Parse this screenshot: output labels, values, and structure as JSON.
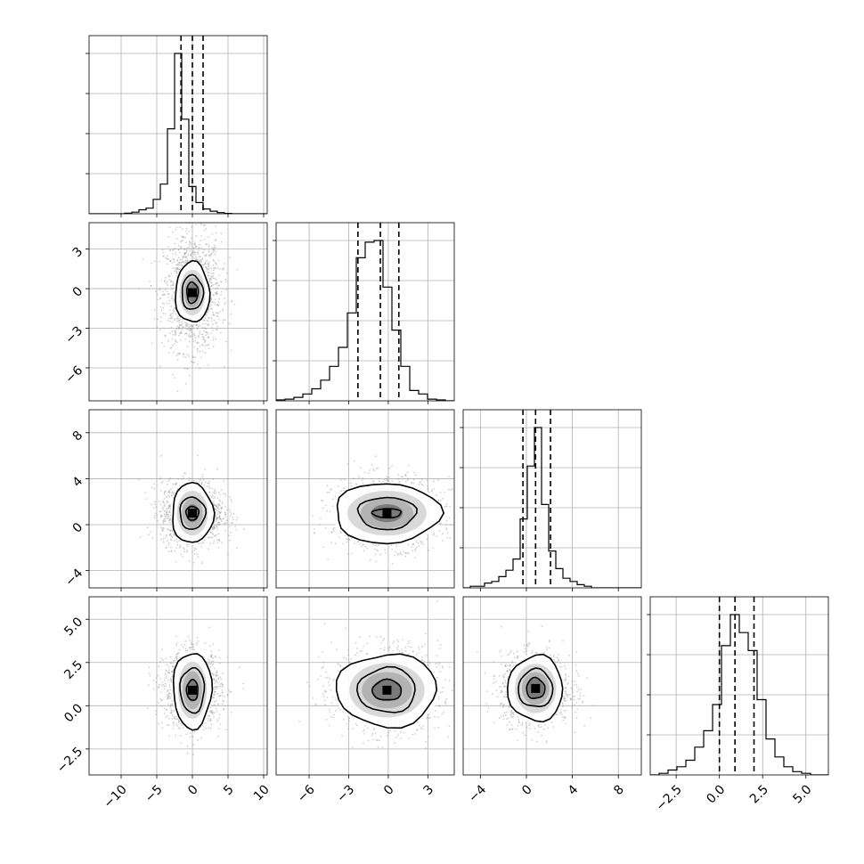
{
  "chart_data": {
    "type": "corner",
    "parameters": [
      {
        "ticks": [
          -10,
          -5,
          0,
          5,
          10
        ],
        "tick_labels": [
          "−10",
          "−5",
          "0",
          "5",
          "10"
        ],
        "range": [
          -14.5,
          10.5
        ]
      },
      {
        "ticks": [
          -6,
          -3,
          0,
          3
        ],
        "tick_labels": [
          "−6",
          "−3",
          "0",
          "3"
        ],
        "range": [
          -8.5,
          5.0
        ]
      },
      {
        "ticks": [
          -4,
          0,
          4,
          8
        ],
        "tick_labels": [
          "−4",
          "0",
          "4",
          "8"
        ],
        "range": [
          -5.5,
          10.0
        ]
      },
      {
        "ticks": [
          -2.5,
          0.0,
          2.5,
          5.0
        ],
        "tick_labels": [
          "−2.5",
          "0.0",
          "2.5",
          "5.0"
        ],
        "range": [
          -4.0,
          6.3
        ]
      }
    ],
    "histograms": [
      {
        "n": 25,
        "counts": [
          0,
          0,
          0,
          0,
          0,
          0.004,
          0.01,
          0.025,
          0.035,
          0.09,
          0.185,
          0.53,
          1.0,
          0.59,
          0.17,
          0.07,
          0.03,
          0.016,
          0.007,
          0.002,
          0,
          0,
          0,
          0,
          0
        ],
        "quantiles": [
          -1.6,
          0.0,
          1.5
        ]
      },
      {
        "n": 20,
        "counts": [
          0.005,
          0.01,
          0.02,
          0.04,
          0.07,
          0.12,
          0.2,
          0.31,
          0.51,
          0.83,
          0.92,
          0.93,
          0.66,
          0.41,
          0.2,
          0.06,
          0.04,
          0.01,
          0.005,
          0
        ],
        "quantiles": [
          -2.3,
          -0.6,
          0.8
        ]
      },
      {
        "n": 25,
        "counts": [
          0,
          0.01,
          0.01,
          0.03,
          0.04,
          0.07,
          0.11,
          0.18,
          0.43,
          0.76,
          1.0,
          0.52,
          0.23,
          0.12,
          0.06,
          0.04,
          0.02,
          0.01,
          0,
          0,
          0,
          0,
          0,
          0,
          0
        ],
        "quantiles": [
          -0.3,
          0.8,
          2.1
        ]
      },
      {
        "n": 20,
        "counts": [
          0,
          0.01,
          0.03,
          0.05,
          0.09,
          0.17,
          0.27,
          0.43,
          0.79,
          0.98,
          0.87,
          0.76,
          0.46,
          0.22,
          0.11,
          0.05,
          0.02,
          0.01,
          0,
          0
        ],
        "quantiles": [
          0.0,
          0.9,
          2.0
        ]
      }
    ],
    "panels": [
      {
        "row": 1,
        "col": 0,
        "center": [
          0.0,
          -0.3
        ],
        "spread": [
          2.0,
          2.2
        ],
        "contours": [
          [
            2.4,
            2.3
          ],
          [
            1.5,
            1.3
          ],
          [
            0.8,
            0.8
          ]
        ]
      },
      {
        "row": 2,
        "col": 0,
        "center": [
          0.0,
          1.0
        ],
        "spread": [
          2.2,
          1.4
        ],
        "contours": [
          [
            2.9,
            2.6
          ],
          [
            1.8,
            1.4
          ],
          [
            0.9,
            0.6
          ]
        ]
      },
      {
        "row": 2,
        "col": 1,
        "center": [
          -0.1,
          1.0
        ],
        "spread": [
          2.0,
          1.5
        ],
        "contours": [
          [
            4.0,
            2.6
          ],
          [
            2.2,
            1.4
          ],
          [
            1.1,
            0.4
          ]
        ]
      },
      {
        "row": 3,
        "col": 0,
        "center": [
          0.0,
          0.9
        ],
        "spread": [
          2.0,
          1.1
        ],
        "contours": [
          [
            2.7,
            2.2
          ],
          [
            1.7,
            1.3
          ],
          [
            0.8,
            0.6
          ]
        ]
      },
      {
        "row": 3,
        "col": 1,
        "center": [
          -0.1,
          0.9
        ],
        "spread": [
          2.0,
          1.2
        ],
        "contours": [
          [
            3.8,
            2.1
          ],
          [
            2.2,
            1.3
          ],
          [
            1.1,
            0.6
          ]
        ]
      },
      {
        "row": 3,
        "col": 2,
        "center": [
          0.8,
          1.0
        ],
        "spread": [
          1.5,
          1.0
        ],
        "contours": [
          [
            2.4,
            1.9
          ],
          [
            1.5,
            1.1
          ],
          [
            0.8,
            0.6
          ]
        ]
      }
    ],
    "grid": true,
    "colors": {
      "scatter": "#9a9a9a",
      "line": "#000000",
      "grid": "#b0b0b0",
      "frame": "#000000",
      "hist_fill": "#000000"
    }
  }
}
